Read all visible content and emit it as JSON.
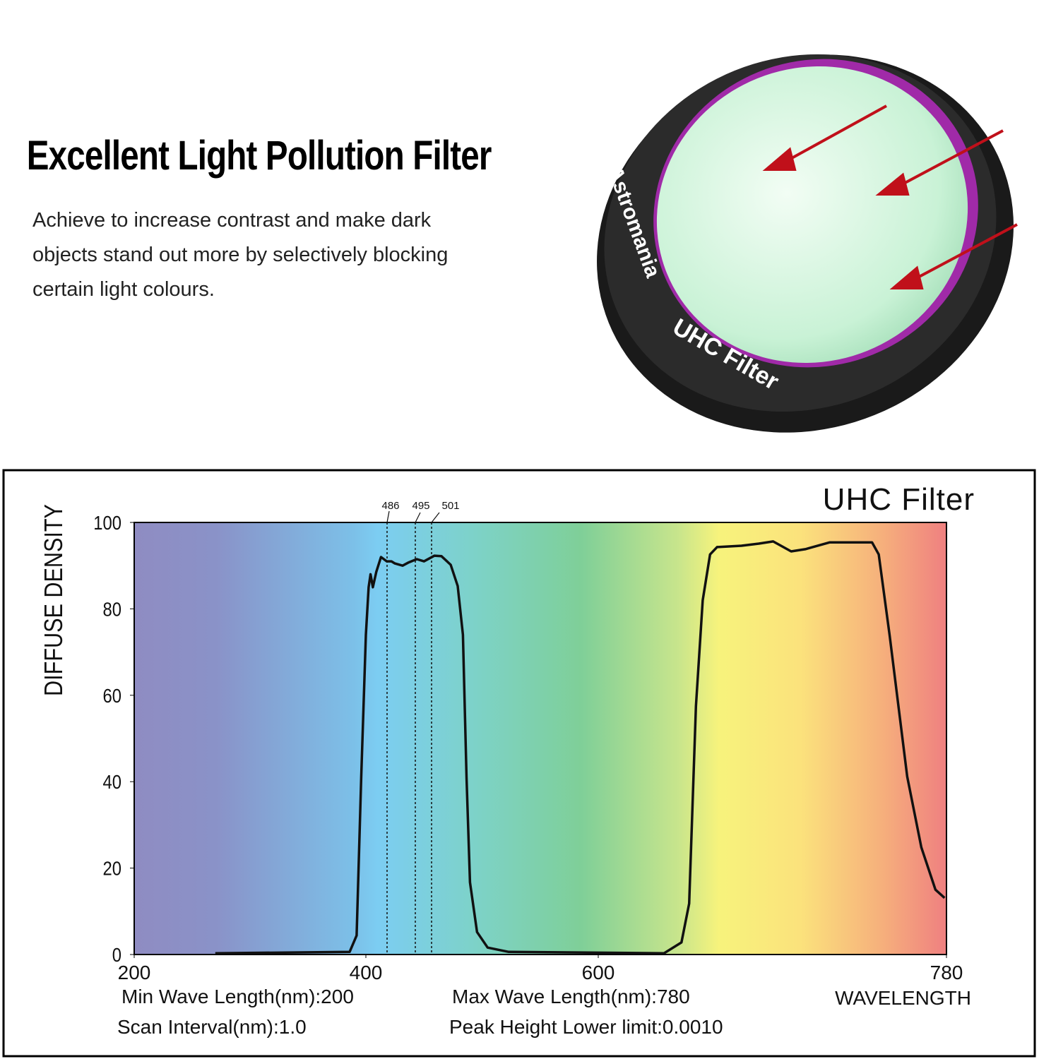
{
  "header": {
    "title": "Excellent Light Pollution Filter",
    "text": [
      "Achieve to increase contrast and make dark",
      "objects stand out more by selectively blocking",
      "certain light colours."
    ],
    "product_brand": "Astromania",
    "product_label": "UHC Filter"
  },
  "chart_data": {
    "type": "line",
    "title": "UHC Filter",
    "x_label": "WAVELENGTH",
    "y_label": "DIFFUSE DENSITY",
    "annotations": [
      "486",
      "495",
      "501"
    ],
    "notes": [
      "Min Wave Length(nm):200",
      "Max Wave Length(nm):780",
      "Scan Interval(nm):1.0",
      "Peak Height Lower limit:0.0010"
    ],
    "xlim": [
      200,
      780
    ],
    "xticks": [
      200,
      400,
      600,
      780
    ],
    "ylim": [
      0,
      100
    ],
    "yticks": [
      0,
      20,
      40,
      60,
      80,
      100
    ],
    "x": [
      270,
      386,
      392,
      396,
      400,
      402.4,
      404,
      406,
      409,
      413,
      418,
      422,
      425,
      431.6,
      436.5,
      443.8,
      450,
      459,
      465,
      473,
      479,
      483.5,
      486.6,
      489.6,
      495.7,
      504.8,
      523,
      634,
      643,
      647,
      650.5,
      654,
      657.8,
      661.4,
      674,
      683,
      690.4,
      699.7,
      707,
      719.7,
      741.5,
      745,
      750.6,
      759.7,
      767,
      774.3,
      779
    ],
    "series": [
      {
        "name": "UHC Filter",
        "color": "#111111",
        "values": [
          0.3,
          0.6,
          4.4,
          41,
          74,
          85,
          88,
          85,
          88.6,
          92,
          91,
          91,
          90.5,
          90,
          90.7,
          91.5,
          91,
          92.3,
          92.2,
          90.2,
          85.3,
          74,
          41,
          16.7,
          5.2,
          1.6,
          0.6,
          0.3,
          2.8,
          11.8,
          57.5,
          82,
          92.6,
          94.3,
          94.6,
          95.1,
          95.6,
          93.3,
          93.8,
          95.4,
          95.4,
          92.6,
          73.9,
          41.2,
          24.8,
          15,
          13.1
        ]
      }
    ]
  }
}
